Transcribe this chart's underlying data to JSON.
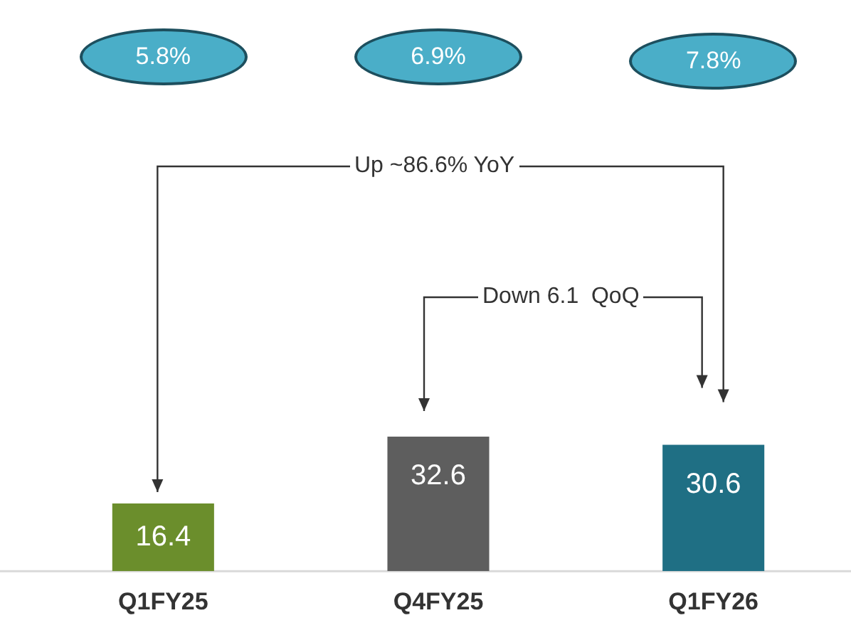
{
  "chart_data": {
    "type": "bar",
    "categories": [
      "Q1FY25",
      "Q4FY25",
      "Q1FY26"
    ],
    "values": [
      16.4,
      32.6,
      30.6
    ],
    "colors": [
      "#6b8e2c",
      "#5e5e5e",
      "#1f6f84"
    ],
    "data_labels": true,
    "grid": false,
    "annotations": [
      "5.8%",
      "6.9%",
      "7.8%",
      "Up ~86.6% YoY",
      "Down 6.1  QoQ"
    ]
  }
}
